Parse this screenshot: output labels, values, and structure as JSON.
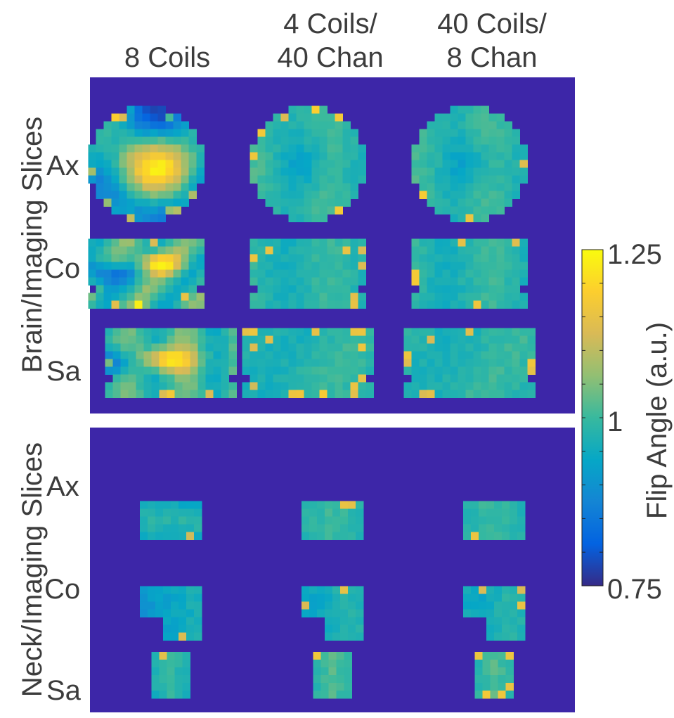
{
  "chart_data": {
    "type": "heatmap",
    "columns": [
      "8 Coils",
      "4 Coils/ 40 Chan",
      "40 Coils/ 8 Chan"
    ],
    "column_lines": [
      [
        "",
        "8 Coils"
      ],
      [
        "4 Coils/",
        "40 Chan"
      ],
      [
        "40 Coils/",
        "8 Chan"
      ]
    ],
    "panels": [
      {
        "ylabel": "Brain/Imaging Slices",
        "rows": [
          "Ax",
          "Co",
          "Sa"
        ]
      },
      {
        "ylabel": "Neck/Imaging Slices",
        "rows": [
          "Ax",
          "Co",
          "Sa"
        ]
      }
    ],
    "colorbar": {
      "label": "Flip Angle (a.u.)",
      "min": 0.75,
      "max": 1.25,
      "tick_labels": [
        "1.25",
        "1",
        "0.75"
      ],
      "ticks": [
        1.25,
        1.0,
        0.75
      ]
    },
    "colormap": [
      "#352a87",
      "#0363e1",
      "#1485d4",
      "#06a7c6",
      "#38b99e",
      "#92bf73",
      "#d9ba56",
      "#fcce2e",
      "#f9fb0e"
    ]
  }
}
